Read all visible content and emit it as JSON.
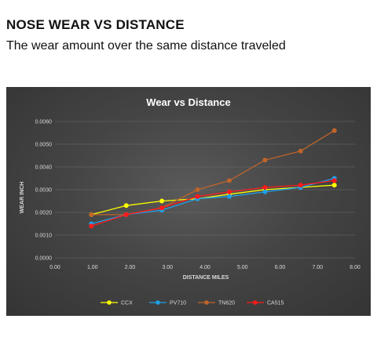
{
  "header": {
    "title": "NOSE WEAR VS DISTANCE",
    "subtitle": "The wear amount over the same distance traveled"
  },
  "chart_data": {
    "type": "line",
    "title": "Wear vs Distance",
    "xlabel": "DISTANCE MILES",
    "ylabel": "WEAR INCH",
    "xlim": [
      0,
      8
    ],
    "ylim": [
      0,
      0.006
    ],
    "xticks": [
      "0.00",
      "1.00",
      "2.00",
      "3.00",
      "4.00",
      "5.00",
      "6.00",
      "7.00",
      "8.00"
    ],
    "yticks": [
      "0.0000",
      "0.0010",
      "0.0020",
      "0.0030",
      "0.0040",
      "0.0050",
      "0.0060"
    ],
    "grid": true,
    "legend_position": "bottom",
    "series": [
      {
        "name": "CCX",
        "color": "#ffff00",
        "x": [
          0.97,
          1.9,
          2.85,
          3.8,
          4.65,
          5.6,
          6.55,
          7.45
        ],
        "y": [
          0.0019,
          0.0023,
          0.0025,
          0.0026,
          0.0028,
          0.003,
          0.0031,
          0.0032
        ]
      },
      {
        "name": "PV710",
        "color": "#1ea0e8",
        "x": [
          0.97,
          1.9,
          2.85,
          3.8,
          4.65,
          5.6,
          6.55,
          7.45
        ],
        "y": [
          0.0015,
          0.0019,
          0.0021,
          0.0026,
          0.0027,
          0.0029,
          0.0031,
          0.0035
        ]
      },
      {
        "name": "TN620",
        "color": "#c0642a",
        "x": [
          0.97,
          1.9,
          2.85,
          3.8,
          4.65,
          5.6,
          6.55,
          7.45
        ],
        "y": [
          0.0019,
          0.0019,
          0.0022,
          0.003,
          0.0034,
          0.0043,
          0.0047,
          0.0056
        ]
      },
      {
        "name": "CA515",
        "color": "#ff1a1a",
        "x": [
          0.97,
          1.9,
          2.85,
          3.8,
          4.65,
          5.6,
          6.55,
          7.45
        ],
        "y": [
          0.0014,
          0.0019,
          0.0022,
          0.0027,
          0.0029,
          0.0031,
          0.0032,
          0.0034
        ]
      }
    ]
  }
}
